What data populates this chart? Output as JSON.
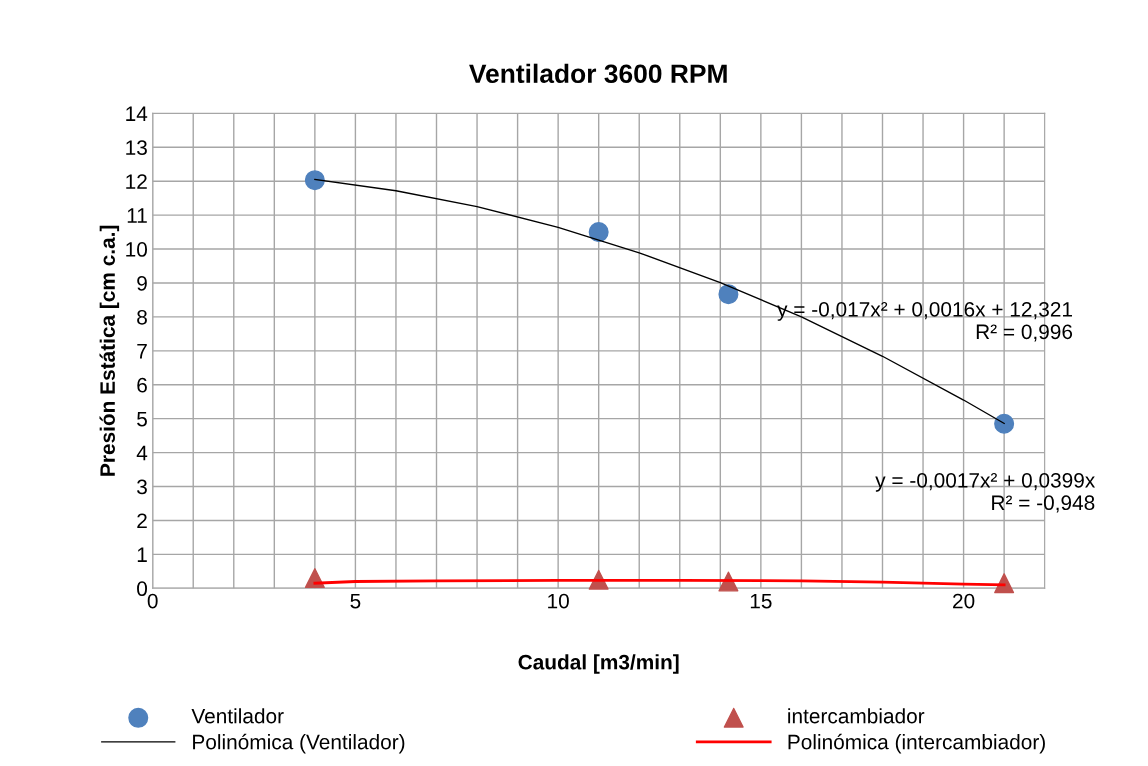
{
  "chart_data": {
    "type": "scatter",
    "title": "Ventilador 3600 RPM",
    "xlabel": "Caudal [m3/min]",
    "ylabel": "Presión Estática [cm c.a.]",
    "series": [
      {
        "name": "Ventilador",
        "color": "#4f81bd",
        "marker": "circle",
        "x": [
          4,
          11,
          14.2,
          21
        ],
        "values": [
          12.03,
          10.5,
          8.67,
          4.85
        ]
      },
      {
        "name": "intercambiador",
        "color": "#c0504d",
        "marker": "triangle",
        "x": [
          4,
          11,
          14.2,
          21
        ],
        "values": [
          0.3,
          0.25,
          0.2,
          0.15
        ]
      },
      {
        "name": "Polinómica (Ventilador)",
        "type": "line",
        "color": "#000000",
        "x": [
          4,
          6,
          8,
          10,
          12,
          14,
          16,
          18,
          20,
          21
        ],
        "values": [
          12.05,
          11.72,
          11.25,
          10.64,
          9.89,
          9.01,
          8.0,
          6.84,
          5.55,
          4.86
        ]
      },
      {
        "name": "Polinómica (intercambiador)",
        "type": "line",
        "color": "#ff0000",
        "x": [
          4,
          5,
          7,
          10,
          13,
          16,
          18,
          20,
          21
        ],
        "values": [
          0.15,
          0.2,
          0.22,
          0.23,
          0.23,
          0.22,
          0.18,
          0.12,
          0.1
        ]
      }
    ],
    "annotations": [
      "y = -0,017x² + 0,0016x + 12,321\nR² = 0,996",
      "y = -0,0017x² + 0,0399x\nR² = -0,948"
    ],
    "xlim": [
      0,
      22
    ],
    "xticks": [
      0,
      {
        "value": 1,
        "label": null
      },
      {
        "value": 2,
        "label": null
      },
      {
        "value": 3,
        "label": null
      },
      {
        "value": 4,
        "label": null
      },
      5,
      {
        "value": 6,
        "label": null
      },
      {
        "value": 7,
        "label": null
      },
      {
        "value": 8,
        "label": null
      },
      {
        "value": 9,
        "label": null
      },
      10,
      {
        "value": 11,
        "label": null
      },
      {
        "value": 12,
        "label": null
      },
      {
        "value": 13,
        "label": null
      },
      {
        "value": 14,
        "label": null
      },
      15,
      {
        "value": 16,
        "label": null
      },
      {
        "value": 17,
        "label": null
      },
      {
        "value": 18,
        "label": null
      },
      {
        "value": 19,
        "label": null
      },
      20,
      {
        "value": 21,
        "label": null
      },
      {
        "value": 22,
        "label": null
      }
    ],
    "ylim": [
      0,
      14
    ],
    "yticks": [
      0,
      1,
      2,
      3,
      4,
      5,
      6,
      7,
      8,
      9,
      10,
      11,
      12,
      13,
      14
    ],
    "grid": true,
    "legend": "bottom"
  }
}
